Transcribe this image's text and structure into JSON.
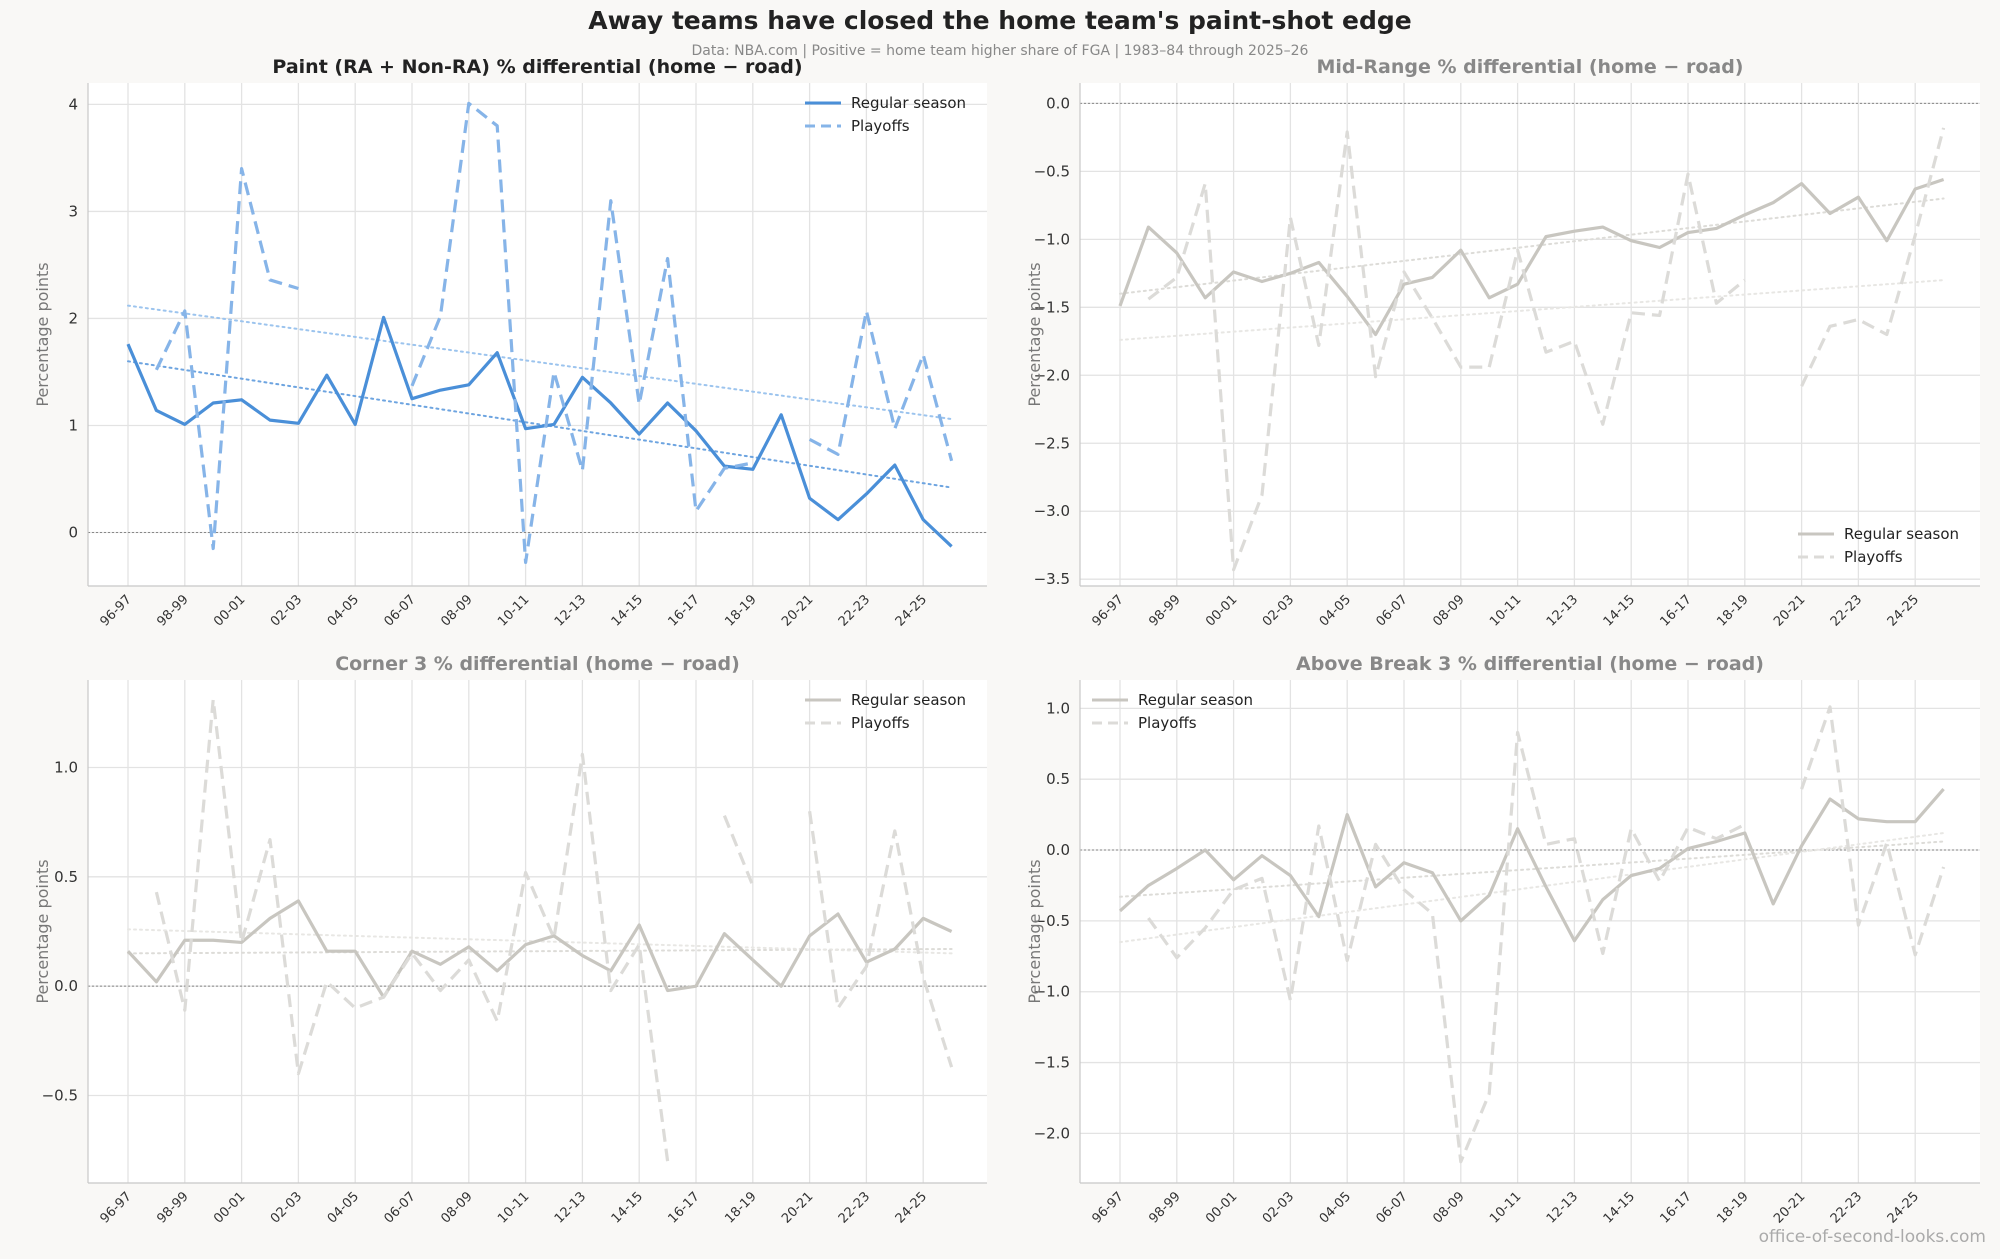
{
  "figure": {
    "title": "Away teams have closed the home team's paint-shot edge",
    "subtitle": "Data: NBA.com  |  Positive = home team higher share of FGA  |  1983–84 through 2025–26",
    "credit": "office-of-second-looks.com"
  },
  "chart_data": [
    {
      "type": "line",
      "title": "Paint (RA + Non-RA) % differential (home − road)",
      "ylabel": "Percentage points",
      "highlight": true,
      "color": "#4a8fd8",
      "ylim": [
        -0.5,
        4.2
      ],
      "yticks": [
        0,
        1,
        2,
        3,
        4
      ],
      "legend_position": "top-right",
      "x_ticks": [
        "96-97",
        "98-99",
        "00-01",
        "02-03",
        "04-05",
        "06-07",
        "08-09",
        "10-11",
        "12-13",
        "14-15",
        "16-17",
        "18-19",
        "20-21",
        "22-23",
        "24-25"
      ],
      "series": [
        {
          "name": "Regular season",
          "style": "solid",
          "values": [
            1.76,
            1.14,
            1.01,
            1.21,
            1.24,
            1.05,
            1.02,
            1.47,
            1.01,
            2.01,
            1.25,
            1.33,
            1.38,
            1.68,
            0.97,
            1.01,
            1.45,
            1.21,
            0.92,
            1.21,
            0.95,
            0.62,
            0.59,
            1.1,
            0.32,
            0.12,
            0.36,
            0.63,
            0.12,
            -0.13
          ]
        },
        {
          "name": "Playoffs",
          "style": "dashed",
          "values": [
            null,
            1.52,
            2.07,
            -0.15,
            3.4,
            2.36,
            2.28,
            null,
            null,
            null,
            1.37,
            2.02,
            4.01,
            3.8,
            -0.28,
            1.5,
            0.58,
            3.1,
            1.2,
            2.56,
            0.2,
            0.6,
            0.65,
            null,
            0.87,
            0.73,
            2.07,
            0.97,
            1.66,
            0.67
          ]
        }
      ],
      "trends": [
        {
          "of": "Regular season",
          "start": 1.6,
          "end": 0.42
        },
        {
          "of": "Playoffs",
          "start": 2.12,
          "end": 1.06
        }
      ]
    },
    {
      "type": "line",
      "title": "Mid-Range % differential (home − road)",
      "ylabel": "Percentage points",
      "highlight": false,
      "color": "#c8c6c0",
      "ylim": [
        -3.55,
        0.15
      ],
      "yticks": [
        0.0,
        -0.5,
        -1.0,
        -1.5,
        -2.0,
        -2.5,
        -3.0,
        -3.5
      ],
      "legend_position": "bottom-right",
      "x_ticks": [
        "96-97",
        "98-99",
        "00-01",
        "02-03",
        "04-05",
        "06-07",
        "08-09",
        "10-11",
        "12-13",
        "14-15",
        "16-17",
        "18-19",
        "20-21",
        "22-23",
        "24-25"
      ],
      "series": [
        {
          "name": "Regular season",
          "style": "solid",
          "values": [
            -1.49,
            -0.91,
            -1.1,
            -1.43,
            -1.24,
            -1.31,
            -1.25,
            -1.17,
            -1.42,
            -1.7,
            -1.33,
            -1.28,
            -1.08,
            -1.43,
            -1.33,
            -0.98,
            -0.94,
            -0.91,
            -1.01,
            -1.06,
            -0.95,
            -0.92,
            -0.82,
            -0.73,
            -0.59,
            -0.81,
            -0.69,
            -1.01,
            -0.63,
            -0.56
          ]
        },
        {
          "name": "Playoffs",
          "style": "dashed",
          "values": [
            null,
            -1.44,
            -1.28,
            -0.59,
            -3.43,
            -2.88,
            -0.84,
            -1.78,
            -0.21,
            -2.01,
            -1.24,
            -1.58,
            -1.94,
            -1.94,
            -1.08,
            -1.83,
            -1.75,
            -2.36,
            -1.54,
            -1.56,
            -0.52,
            -1.47,
            -1.3,
            null,
            -2.08,
            -1.64,
            -1.59,
            -1.7,
            -0.97,
            -0.18
          ]
        }
      ],
      "trends": [
        {
          "of": "Regular season",
          "start": -1.4,
          "end": -0.7
        },
        {
          "of": "Playoffs",
          "start": -1.74,
          "end": -1.3
        }
      ]
    },
    {
      "type": "line",
      "title": "Corner 3 % differential (home − road)",
      "ylabel": "Percentage points",
      "highlight": false,
      "color": "#c8c6c0",
      "ylim": [
        -0.9,
        1.4
      ],
      "yticks": [
        1.0,
        0.5,
        0.0,
        -0.5
      ],
      "legend_position": "top-right",
      "x_ticks": [
        "96-97",
        "98-99",
        "00-01",
        "02-03",
        "04-05",
        "06-07",
        "08-09",
        "10-11",
        "12-13",
        "14-15",
        "16-17",
        "18-19",
        "20-21",
        "22-23",
        "24-25"
      ],
      "series": [
        {
          "name": "Regular season",
          "style": "solid",
          "values": [
            0.16,
            0.02,
            0.21,
            0.21,
            0.2,
            0.31,
            0.39,
            0.16,
            0.16,
            -0.05,
            0.16,
            0.1,
            0.18,
            0.07,
            0.19,
            0.23,
            0.14,
            0.07,
            0.28,
            -0.02,
            0.0,
            0.24,
            0.12,
            0.0,
            0.23,
            0.33,
            0.11,
            0.17,
            0.31,
            0.25
          ]
        },
        {
          "name": "Playoffs",
          "style": "dashed",
          "values": [
            null,
            0.43,
            -0.11,
            1.31,
            0.2,
            0.67,
            -0.4,
            0.02,
            -0.1,
            -0.05,
            0.15,
            -0.02,
            0.12,
            -0.16,
            0.52,
            0.22,
            1.06,
            -0.02,
            0.19,
            -0.8,
            null,
            0.78,
            0.46,
            null,
            0.8,
            -0.1,
            0.09,
            0.71,
            0.04,
            -0.37
          ]
        }
      ],
      "trends": [
        {
          "of": "Regular season",
          "start": 0.15,
          "end": 0.17
        },
        {
          "of": "Playoffs",
          "start": 0.26,
          "end": 0.15
        }
      ]
    },
    {
      "type": "line",
      "title": "Above Break 3 % differential (home − road)",
      "ylabel": "Percentage points",
      "highlight": false,
      "color": "#c8c6c0",
      "ylim": [
        -2.35,
        1.2
      ],
      "yticks": [
        1.0,
        0.5,
        0.0,
        -0.5,
        -1.0,
        -1.5,
        -2.0
      ],
      "legend_position": "top-left",
      "x_ticks": [
        "96-97",
        "98-99",
        "00-01",
        "02-03",
        "04-05",
        "06-07",
        "08-09",
        "10-11",
        "12-13",
        "14-15",
        "16-17",
        "18-19",
        "20-21",
        "22-23",
        "24-25"
      ],
      "series": [
        {
          "name": "Regular season",
          "style": "solid",
          "values": [
            -0.43,
            -0.25,
            -0.13,
            0.0,
            -0.21,
            -0.04,
            -0.18,
            -0.47,
            0.25,
            -0.26,
            -0.09,
            -0.16,
            -0.5,
            -0.32,
            0.15,
            -0.26,
            -0.64,
            -0.35,
            -0.18,
            -0.13,
            0.01,
            0.06,
            0.12,
            -0.38,
            0.03,
            0.36,
            0.22,
            0.2,
            0.2,
            0.43
          ]
        },
        {
          "name": "Playoffs",
          "style": "dashed",
          "values": [
            null,
            -0.48,
            -0.76,
            -0.55,
            -0.28,
            -0.2,
            -1.06,
            0.17,
            -0.78,
            0.04,
            -0.28,
            -0.45,
            -2.2,
            -1.72,
            0.83,
            0.04,
            0.08,
            -0.73,
            0.15,
            -0.22,
            0.16,
            0.08,
            0.18,
            null,
            0.43,
            1.01,
            -0.53,
            0.05,
            -0.74,
            -0.12
          ]
        }
      ],
      "trends": [
        {
          "of": "Regular season",
          "start": -0.33,
          "end": 0.06
        },
        {
          "of": "Playoffs",
          "start": -0.65,
          "end": 0.12
        }
      ]
    }
  ]
}
